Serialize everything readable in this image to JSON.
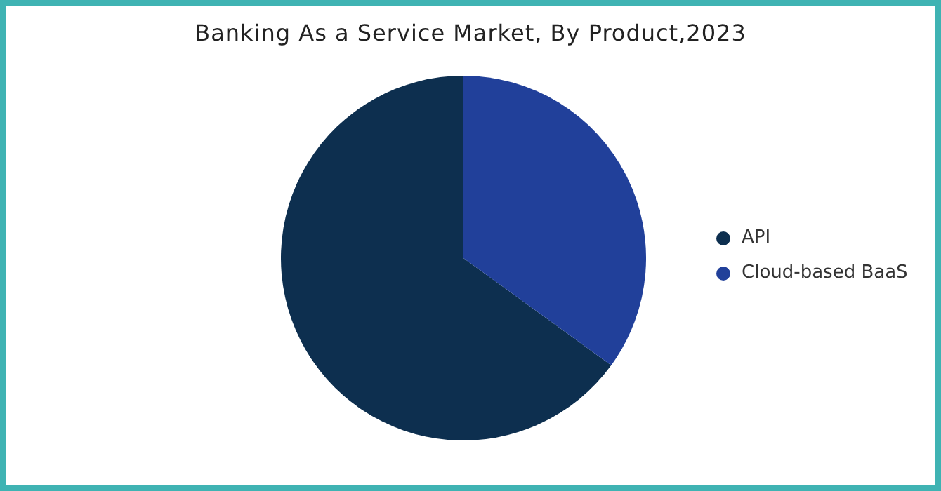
{
  "chart_data": {
    "type": "pie",
    "title": "Banking As a Service Market, By Product,2023",
    "categories": [
      "API",
      "Cloud-based BaaS"
    ],
    "values": [
      65,
      35
    ],
    "colors": [
      "#0d2f4f",
      "#21409a"
    ],
    "legend": "right"
  }
}
